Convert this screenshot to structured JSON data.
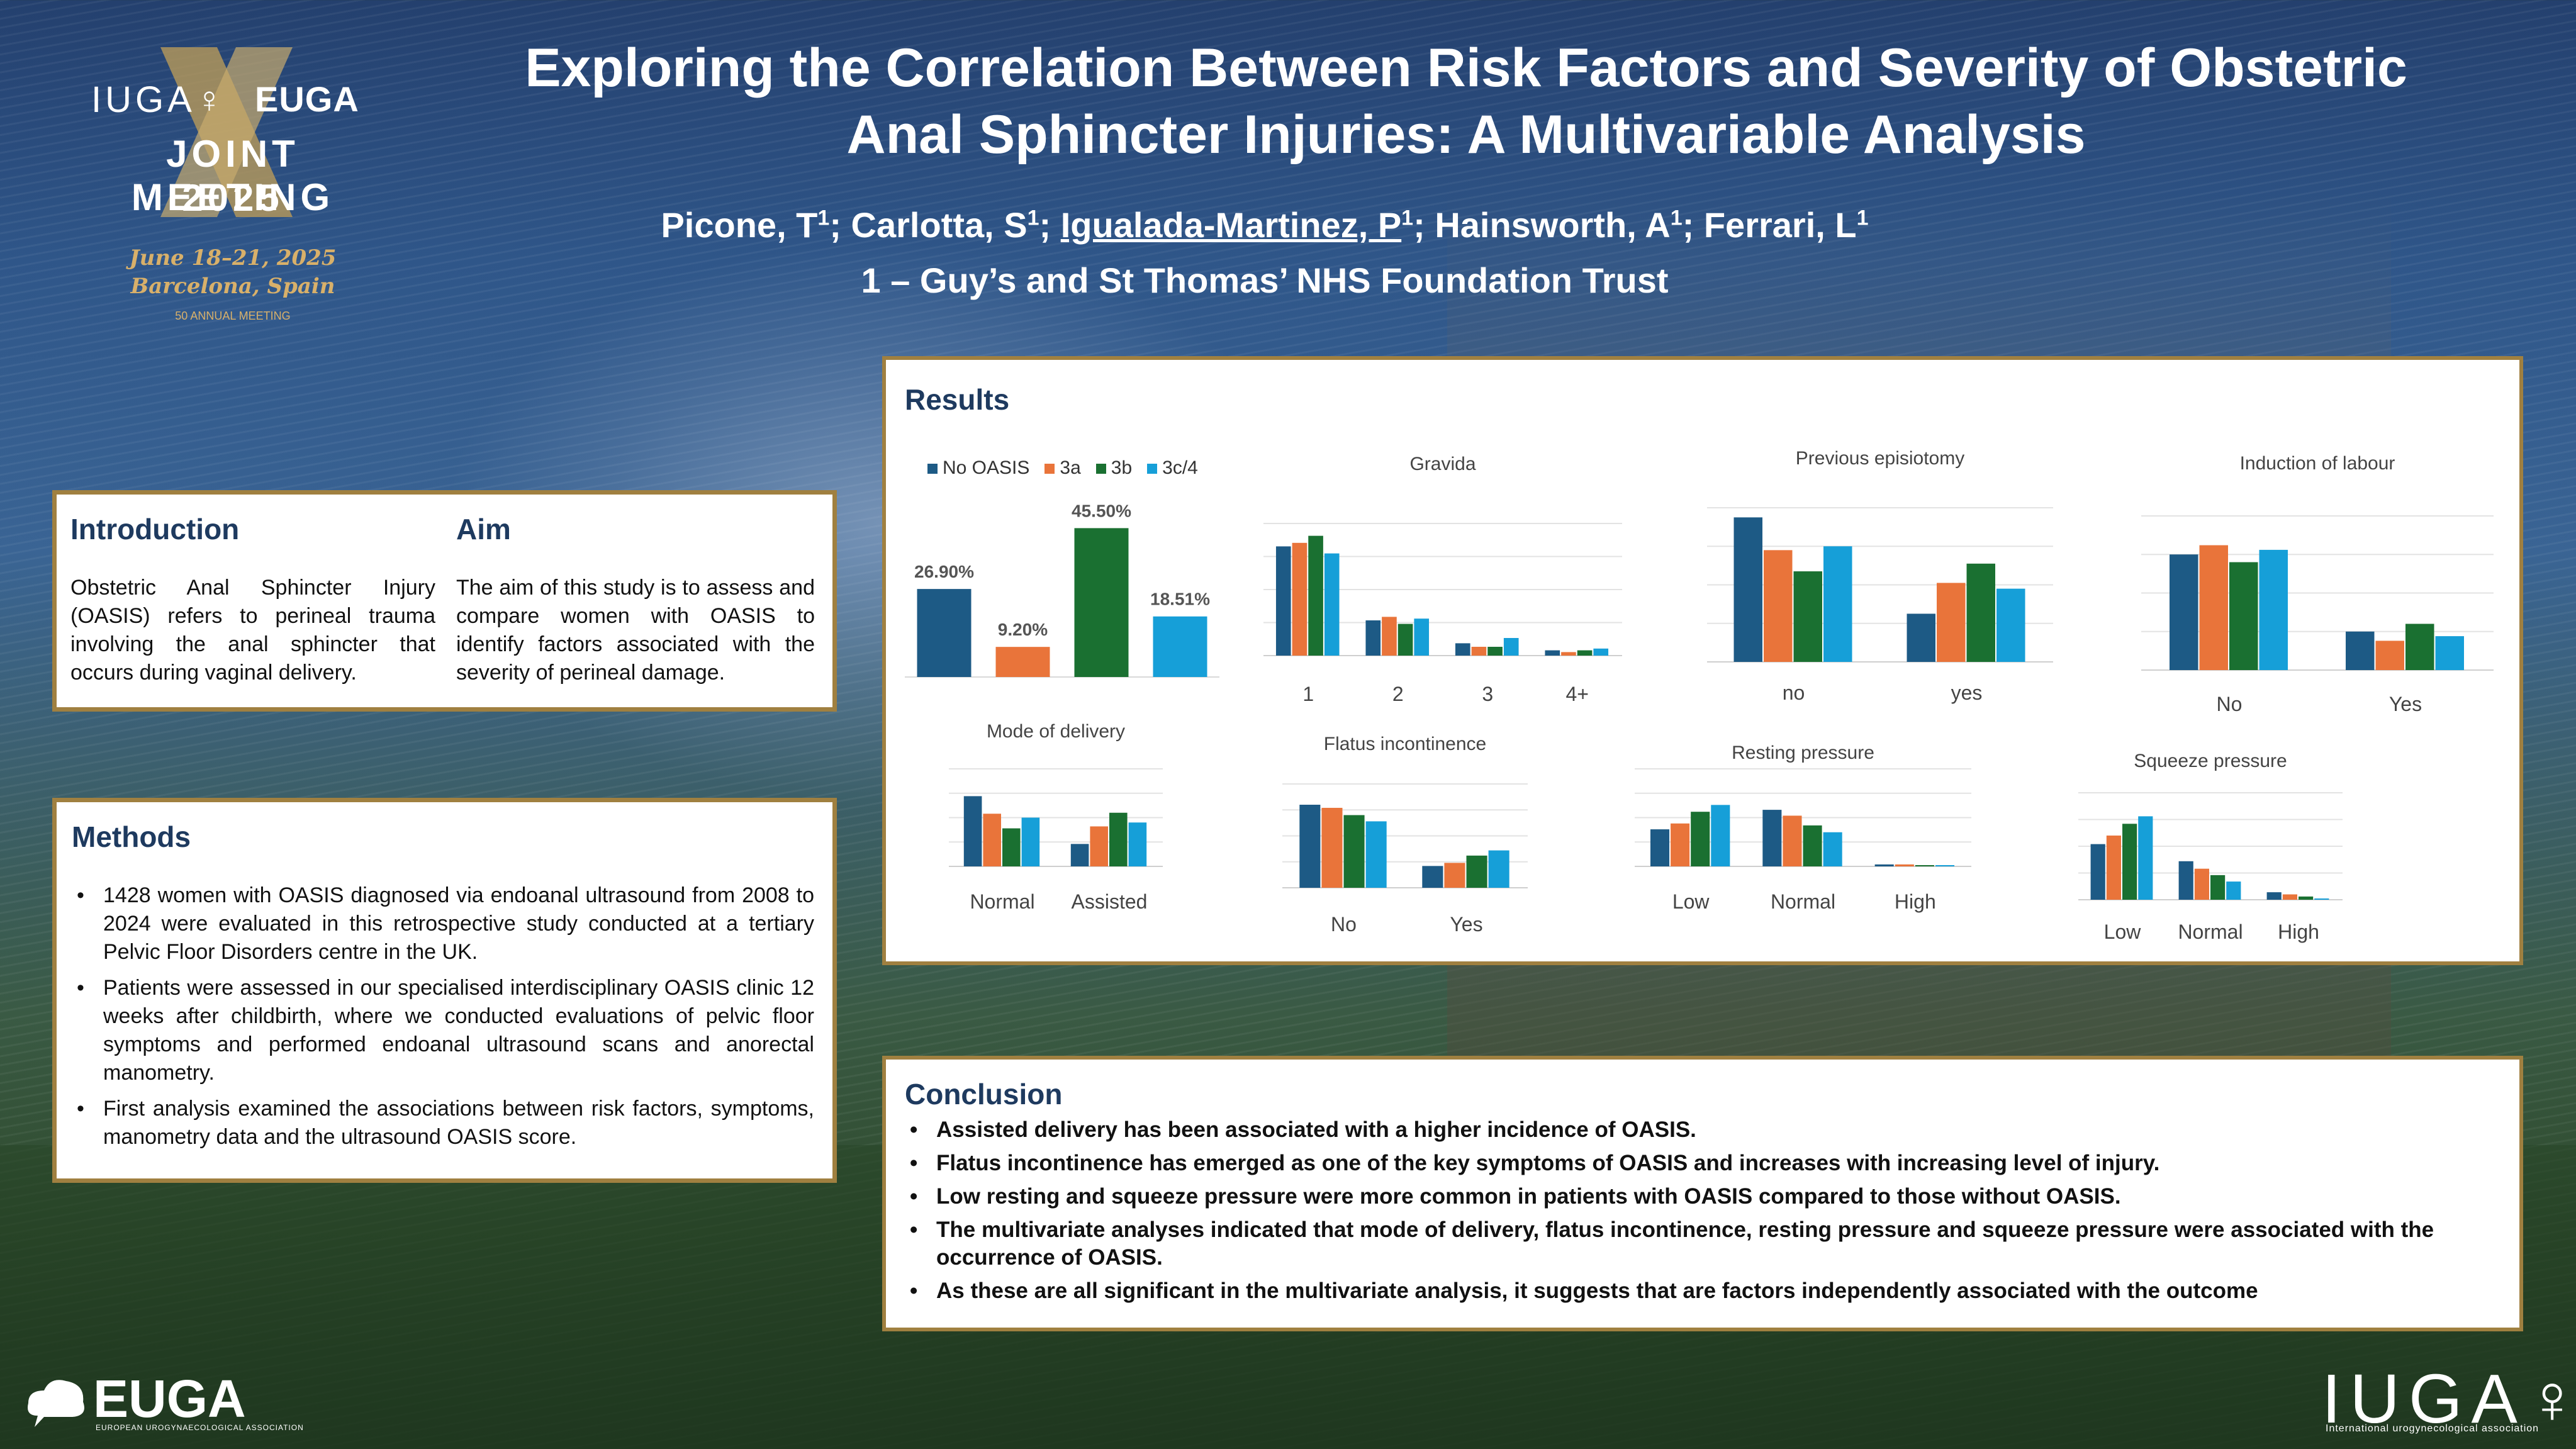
{
  "header": {
    "logo_iuga": "IUGA♀",
    "logo_euga": "EUGA",
    "logo_joint": "JOINT MEETING",
    "logo_year": "2025",
    "logo_dates": "June 18–21, 2025",
    "logo_city": "Barcelona, Spain",
    "logo_anniversary": "50 ANNUAL MEETING",
    "title_line1": "Exploring the Correlation Between Risk Factors and Severity of Obstetric",
    "title_line2": "Anal Sphincter Injuries: A Multivariable Analysis",
    "authors": [
      {
        "name": "Picone, T",
        "sup": "1",
        "sep": "; ",
        "underline": false
      },
      {
        "name": "Carlotta, S",
        "sup": "1",
        "sep": "; ",
        "underline": false
      },
      {
        "name": "Igualada-Martinez, P",
        "sup": "1",
        "sep": "; ",
        "underline": true
      },
      {
        "name": "Hainsworth, A",
        "sup": "1",
        "sep": "; ",
        "underline": false
      },
      {
        "name": "Ferrari, L",
        "sup": "1",
        "sep": "",
        "underline": false
      }
    ],
    "affiliation": "1 – Guy’s and St Thomas’ NHS Foundation Trust"
  },
  "intro": {
    "heading": "Introduction",
    "text": "Obstetric Anal Sphincter Injury (OASIS) refers to perineal trauma involving the anal sphincter that occurs during vaginal delivery.",
    "aim_heading": "Aim",
    "aim_text": "The aim of this study is to assess and compare women with OASIS to identify factors associated with the severity of perineal damage."
  },
  "methods": {
    "heading": "Methods",
    "items": [
      "1428 women with OASIS diagnosed via endoanal ultrasound from 2008 to 2024 were evaluated in this retrospective study conducted at a tertiary Pelvic Floor Disorders centre in the UK.",
      "Patients were assessed in our specialised interdisciplinary OASIS clinic 12 weeks after childbirth, where we conducted evaluations of pelvic floor symptoms and performed endoanal ultrasound scans and anorectal manometry.",
      "First analysis examined the associations between risk factors, symptoms, manometry data and the ultrasound OASIS score."
    ]
  },
  "results": {
    "heading": "Results"
  },
  "conclusion": {
    "heading": "Conclusion",
    "items": [
      "Assisted delivery has been associated with a higher incidence of OASIS.",
      "Flatus incontinence has emerged as one of the key symptoms of OASIS and increases with increasing level of injury.",
      "Low resting and squeeze pressure were more common in patients with OASIS compared to those without OASIS.",
      "The multivariate analyses indicated that mode of delivery, flatus incontinence, resting pressure and squeeze pressure were associated with the occurrence of OASIS.",
      "As these are all significant in the multivariate analysis, it suggests that are factors independently associated with the outcome"
    ]
  },
  "footer": {
    "euga": "EUGA",
    "euga_sub": "EUROPEAN UROGYNAECOLOGICAL ASSOCIATION",
    "iuga": "IUGA♀",
    "iuga_sub": "International urogynecological association"
  },
  "colors": {
    "no_oasis": "#1d5a85",
    "3a": "#e9743a",
    "3b": "#1a7031",
    "3c4": "#169fd8"
  },
  "chart_data": [
    {
      "id": "overall",
      "type": "bar",
      "legend": [
        "No OASIS",
        "3a",
        "3b",
        "3c/4"
      ],
      "categories": [
        "No OASIS",
        "3a",
        "3b",
        "3c/4"
      ],
      "values": [
        26.9,
        9.2,
        45.5,
        18.51
      ],
      "data_labels": [
        "26.90%",
        "9.20%",
        "45.50%",
        "18.51%"
      ],
      "ylim": [
        0,
        50
      ]
    },
    {
      "id": "gravida",
      "type": "bar",
      "title": "Gravida",
      "categories": [
        "1",
        "2",
        "3",
        "4+"
      ],
      "series": [
        {
          "name": "No OASIS",
          "values": [
            62,
            20,
            7,
            3
          ]
        },
        {
          "name": "3a",
          "values": [
            64,
            22,
            5,
            2
          ]
        },
        {
          "name": "3b",
          "values": [
            68,
            18,
            5,
            3
          ]
        },
        {
          "name": "3c/4",
          "values": [
            58,
            21,
            10,
            4
          ]
        }
      ],
      "ylim": [
        0,
        75
      ],
      "grid": true
    },
    {
      "id": "episiotomy",
      "type": "bar",
      "title": "Previous episiotomy",
      "categories": [
        "no",
        "yes"
      ],
      "series": [
        {
          "name": "No OASIS",
          "values": [
            75,
            25
          ]
        },
        {
          "name": "3a",
          "values": [
            58,
            41
          ]
        },
        {
          "name": "3b",
          "values": [
            47,
            51
          ]
        },
        {
          "name": "3c/4",
          "values": [
            60,
            38
          ]
        }
      ],
      "ylim": [
        0,
        80
      ],
      "grid": true
    },
    {
      "id": "induction",
      "type": "bar",
      "title": "Induction of labour",
      "categories": [
        "No",
        "Yes"
      ],
      "series": [
        {
          "name": "No OASIS",
          "values": [
            75,
            25
          ]
        },
        {
          "name": "3a",
          "values": [
            81,
            19
          ]
        },
        {
          "name": "3b",
          "values": [
            70,
            30
          ]
        },
        {
          "name": "3c/4",
          "values": [
            78,
            22
          ]
        }
      ],
      "ylim": [
        0,
        100
      ],
      "grid": true
    },
    {
      "id": "delivery",
      "type": "bar",
      "title": "Mode of delivery",
      "categories": [
        "Normal",
        "Assisted"
      ],
      "series": [
        {
          "name": "No OASIS",
          "values": [
            72,
            23
          ]
        },
        {
          "name": "3a",
          "values": [
            54,
            41
          ]
        },
        {
          "name": "3b",
          "values": [
            39,
            55
          ]
        },
        {
          "name": "3c/4",
          "values": [
            50,
            45
          ]
        }
      ],
      "ylim": [
        0,
        100
      ],
      "grid": true
    },
    {
      "id": "flatus",
      "type": "bar",
      "title": "Flatus incontinence",
      "categories": [
        "No",
        "Yes"
      ],
      "series": [
        {
          "name": "No OASIS",
          "values": [
            80,
            21
          ]
        },
        {
          "name": "3a",
          "values": [
            77,
            24
          ]
        },
        {
          "name": "3b",
          "values": [
            70,
            31
          ]
        },
        {
          "name": "3c/4",
          "values": [
            64,
            36
          ]
        }
      ],
      "ylim": [
        0,
        100
      ],
      "grid": true
    },
    {
      "id": "resting",
      "type": "bar",
      "title": "Resting pressure",
      "categories": [
        "Low",
        "Normal",
        "High"
      ],
      "series": [
        {
          "name": "No OASIS",
          "values": [
            38,
            58,
            2
          ]
        },
        {
          "name": "3a",
          "values": [
            44,
            52,
            2
          ]
        },
        {
          "name": "3b",
          "values": [
            56,
            42,
            1
          ]
        },
        {
          "name": "3c/4",
          "values": [
            63,
            35,
            1
          ]
        }
      ],
      "ylim": [
        0,
        100
      ],
      "grid": true
    },
    {
      "id": "squeeze",
      "type": "bar",
      "title": "Squeeze pressure",
      "categories": [
        "Low",
        "Normal",
        "High"
      ],
      "series": [
        {
          "name": "No OASIS",
          "values": [
            52,
            36,
            7
          ]
        },
        {
          "name": "3a",
          "values": [
            60,
            29,
            5
          ]
        },
        {
          "name": "3b",
          "values": [
            71,
            23,
            3
          ]
        },
        {
          "name": "3c/4",
          "values": [
            78,
            17,
            1
          ]
        }
      ],
      "ylim": [
        0,
        100
      ],
      "grid": true
    }
  ]
}
